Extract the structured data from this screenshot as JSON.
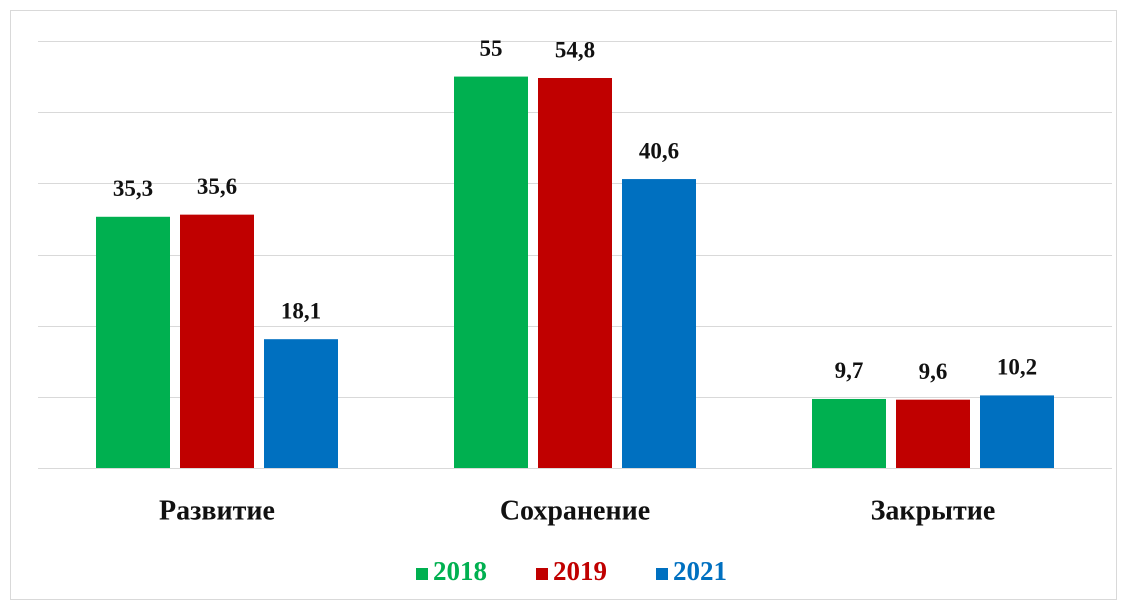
{
  "chart_data": {
    "type": "bar",
    "categories": [
      "Развитие",
      "Сохранение",
      "Закрытие"
    ],
    "series": [
      {
        "name": "2018",
        "color": "#00b050",
        "values": [
          35.3,
          55,
          9.7
        ],
        "value_labels": [
          "35,3",
          "55",
          "9,7"
        ]
      },
      {
        "name": "2019",
        "color": "#c00000",
        "values": [
          35.6,
          54.8,
          9.6
        ],
        "value_labels": [
          "35,6",
          "54,8",
          "9,6"
        ]
      },
      {
        "name": "2021",
        "color": "#0070c0",
        "values": [
          18.1,
          40.6,
          10.2
        ],
        "value_labels": [
          "18,1",
          "40,6",
          "10,2"
        ]
      }
    ],
    "ylim": [
      0,
      60
    ],
    "yticks": [
      0,
      10,
      20,
      30,
      40,
      50,
      60
    ],
    "grid": true,
    "legend": "bottom"
  }
}
